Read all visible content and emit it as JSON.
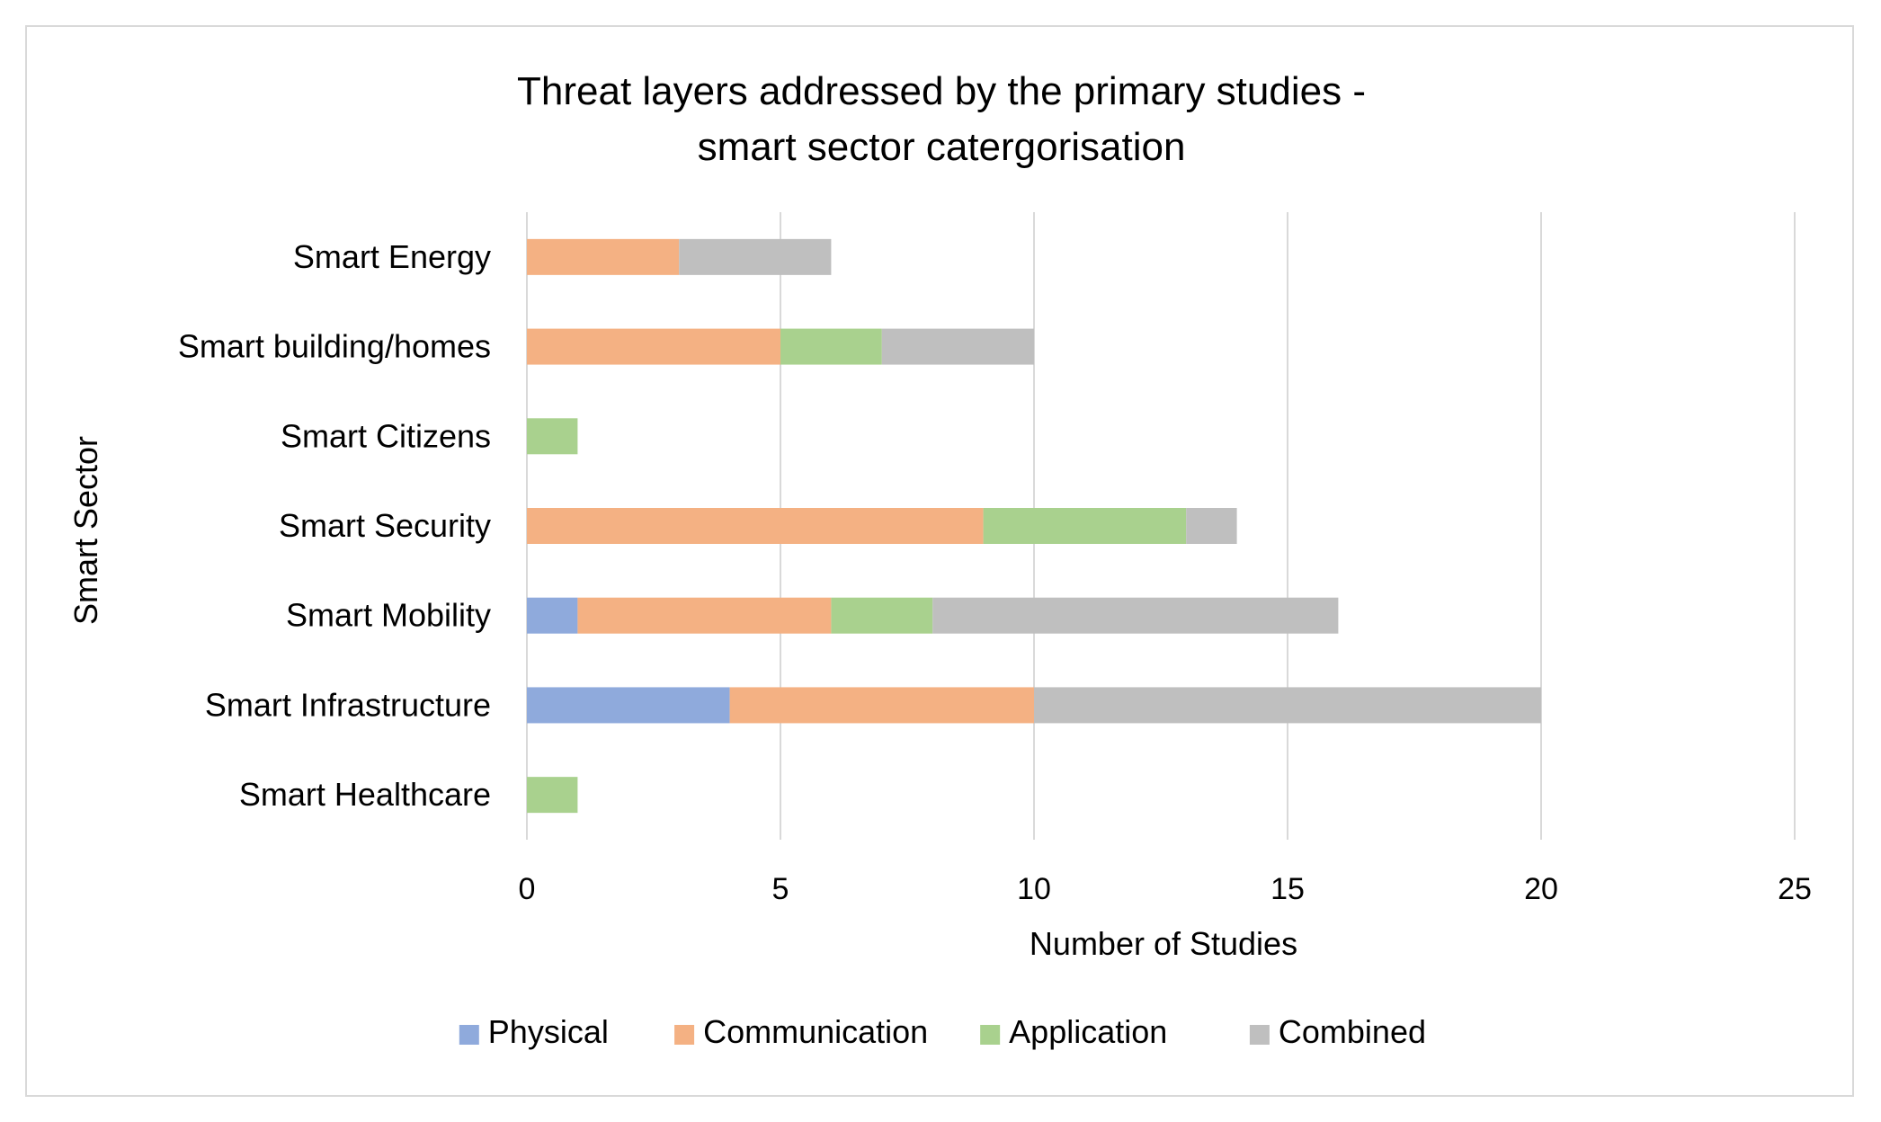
{
  "chart_data": {
    "type": "bar",
    "orientation": "horizontal",
    "stacked": true,
    "title": "Threat layers addressed by the primary studies -",
    "title_line2": "smart sector catergorisation",
    "xlabel": "Number of Studies",
    "ylabel": "Smart Sector",
    "xlim": [
      0,
      25
    ],
    "xticks": [
      "0",
      "5",
      "10",
      "15",
      "20",
      "25"
    ],
    "xtick_values": [
      0,
      5,
      10,
      15,
      20,
      25
    ],
    "grid": "vertical",
    "legend_position": "bottom",
    "categories": [
      "Smart Energy",
      "Smart building/homes",
      "Smart Citizens",
      "Smart Security",
      "Smart Mobility",
      "Smart Infrastructure",
      "Smart Healthcare"
    ],
    "series": [
      {
        "name": "Physical",
        "color": "#8faadc",
        "values": [
          0,
          0,
          0,
          0,
          1,
          4,
          0
        ]
      },
      {
        "name": "Communication",
        "color": "#f4b183",
        "values": [
          3,
          5,
          0,
          9,
          5,
          6,
          0
        ]
      },
      {
        "name": "Application",
        "color": "#a9d18e",
        "values": [
          0,
          2,
          1,
          4,
          2,
          0,
          1
        ]
      },
      {
        "name": "Combined",
        "color": "#bfbfbf",
        "values": [
          3,
          3,
          0,
          1,
          8,
          10,
          0
        ]
      }
    ]
  }
}
